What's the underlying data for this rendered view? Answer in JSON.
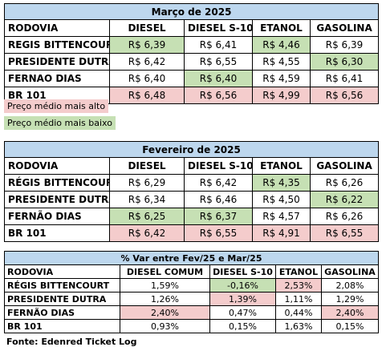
{
  "colors": {
    "title_bg": "#bdd7ee",
    "high": "#f4cccc",
    "low": "#c6e0b4"
  },
  "march": {
    "title": "Março de 2025",
    "headers": [
      "RODOVIA",
      "DIESEL",
      "DIESEL S-10",
      "ETANOL",
      "GASOLINA"
    ],
    "rows": [
      {
        "name": "REGIS BITTENCOURT",
        "cells": [
          {
            "v": "R$ 6,39",
            "hl": "green"
          },
          {
            "v": "R$ 6,41",
            "hl": ""
          },
          {
            "v": "R$ 4,46",
            "hl": "green"
          },
          {
            "v": "R$ 6,39",
            "hl": ""
          }
        ]
      },
      {
        "name": "PRESIDENTE DUTRA",
        "cells": [
          {
            "v": "R$ 6,42",
            "hl": ""
          },
          {
            "v": "R$ 6,55",
            "hl": ""
          },
          {
            "v": "R$ 4,55",
            "hl": ""
          },
          {
            "v": "R$ 6,30",
            "hl": "green"
          }
        ]
      },
      {
        "name": "FERNAO DIAS",
        "cells": [
          {
            "v": "R$ 6,40",
            "hl": ""
          },
          {
            "v": "R$ 6,40",
            "hl": "green"
          },
          {
            "v": "R$ 4,59",
            "hl": ""
          },
          {
            "v": "R$ 6,41",
            "hl": ""
          }
        ]
      },
      {
        "name": "BR 101",
        "cells": [
          {
            "v": "R$ 6,48",
            "hl": "red"
          },
          {
            "v": "R$ 6,56",
            "hl": "red"
          },
          {
            "v": "R$ 4,99",
            "hl": "red"
          },
          {
            "v": "R$ 6,56",
            "hl": "red"
          }
        ]
      }
    ]
  },
  "legend": {
    "high": "Preço médio mais alto",
    "low": "Preço médio mais baixo"
  },
  "february": {
    "title": "Fevereiro de 2025",
    "headers": [
      "RODOVIA",
      "DIESEL",
      "DIESEL S-10",
      "ETANOL",
      "GASOLINA"
    ],
    "rows": [
      {
        "name": "RÉGIS BITTENCOURT",
        "cells": [
          {
            "v": "R$ 6,29",
            "hl": ""
          },
          {
            "v": "R$ 6,42",
            "hl": ""
          },
          {
            "v": "R$ 4,35",
            "hl": "green"
          },
          {
            "v": "R$ 6,26",
            "hl": ""
          }
        ]
      },
      {
        "name": "PRESIDENTE DUTRA",
        "cells": [
          {
            "v": "R$ 6,34",
            "hl": ""
          },
          {
            "v": "R$ 6,46",
            "hl": ""
          },
          {
            "v": "R$ 4,50",
            "hl": ""
          },
          {
            "v": "R$ 6,22",
            "hl": "green"
          }
        ]
      },
      {
        "name": "FERNÃO DIAS",
        "cells": [
          {
            "v": "R$ 6,25",
            "hl": "green"
          },
          {
            "v": "R$ 6,37",
            "hl": "green"
          },
          {
            "v": "R$ 4,57",
            "hl": ""
          },
          {
            "v": "R$ 6,26",
            "hl": ""
          }
        ]
      },
      {
        "name": "BR 101",
        "cells": [
          {
            "v": "R$ 6,42",
            "hl": "red"
          },
          {
            "v": "R$ 6,55",
            "hl": "red"
          },
          {
            "v": "R$ 4,91",
            "hl": "red"
          },
          {
            "v": "R$ 6,55",
            "hl": "red"
          }
        ]
      }
    ]
  },
  "variation": {
    "title": "% Var entre Fev/25 e Mar/25",
    "headers": [
      "RODOVIA",
      "DIESEL COMUM",
      "DIESEL S-10",
      "ETANOL",
      "GASOLINA"
    ],
    "rows": [
      {
        "name": "RÉGIS BITTENCOURT",
        "cells": [
          {
            "v": "1,59%",
            "hl": ""
          },
          {
            "v": "-0,16%",
            "hl": "green"
          },
          {
            "v": "2,53%",
            "hl": "red"
          },
          {
            "v": "2,08%",
            "hl": ""
          }
        ]
      },
      {
        "name": "PRESIDENTE DUTRA",
        "cells": [
          {
            "v": "1,26%",
            "hl": ""
          },
          {
            "v": "1,39%",
            "hl": "red"
          },
          {
            "v": "1,11%",
            "hl": ""
          },
          {
            "v": "1,29%",
            "hl": ""
          }
        ]
      },
      {
        "name": "FERNÃO DIAS",
        "cells": [
          {
            "v": "2,40%",
            "hl": "red"
          },
          {
            "v": "0,47%",
            "hl": ""
          },
          {
            "v": "0,44%",
            "hl": ""
          },
          {
            "v": "2,40%",
            "hl": "red"
          }
        ]
      },
      {
        "name": "BR 101",
        "cells": [
          {
            "v": "0,93%",
            "hl": ""
          },
          {
            "v": "0,15%",
            "hl": ""
          },
          {
            "v": "1,63%",
            "hl": ""
          },
          {
            "v": "0,15%",
            "hl": ""
          }
        ]
      }
    ]
  },
  "source": "Fonte: Edenred Ticket Log"
}
